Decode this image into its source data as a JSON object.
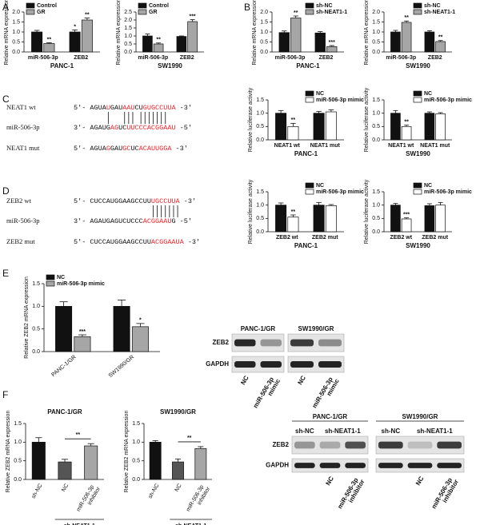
{
  "panels": [
    "A",
    "B",
    "C",
    "D",
    "E",
    "F"
  ],
  "highlight_color": "#e3262b",
  "chart_data": [
    {
      "type": "bar",
      "title": "PANC-1",
      "ylabel": "Relative mRNA expression",
      "categories": [
        "miR-506-3p",
        "ZEB2"
      ],
      "legend": "upper left",
      "ylim": [
        0,
        2
      ],
      "yticks": [
        {
          "value": 0,
          "label": "0.0"
        },
        0.5,
        {
          "value": 1,
          "label": "1.0"
        },
        1.5,
        {
          "value": 2,
          "label": "2.0"
        }
      ],
      "series": [
        {
          "name": "Control",
          "color": "#111111",
          "values": [
            1.0,
            1.0
          ],
          "errors": [
            0.08,
            0.1
          ],
          "significance": [
            null,
            "*"
          ]
        },
        {
          "name": "GR",
          "color": "#a6a6a6",
          "values": [
            0.42,
            1.6
          ],
          "errors": [
            0.04,
            0.1
          ],
          "significance": [
            "**",
            "**"
          ]
        }
      ]
    },
    {
      "type": "bar",
      "title": "SW1990",
      "ylabel": "Relative mRNA expression",
      "categories": [
        "miR-506-3p",
        "ZEB2"
      ],
      "legend": "upper left",
      "ylim": [
        0,
        2.5
      ],
      "yticks": [
        {
          "value": 0,
          "label": "0.0"
        },
        0.5,
        {
          "value": 1,
          "label": "1.0"
        },
        1.5,
        {
          "value": 2,
          "label": "2.0"
        },
        2.5
      ],
      "series": [
        {
          "name": "Control",
          "color": "#111111",
          "values": [
            1.0,
            0.97
          ],
          "errors": [
            0.12,
            0.03
          ],
          "significance": [
            null,
            null
          ]
        },
        {
          "name": "GR",
          "color": "#a6a6a6",
          "values": [
            0.5,
            1.9
          ],
          "errors": [
            0.06,
            0.12
          ],
          "significance": [
            "**",
            "***"
          ]
        }
      ]
    },
    {
      "type": "bar",
      "title": "PANC-1",
      "ylabel": "Relative mRNA expression",
      "categories": [
        "miR-506-3p",
        "ZEB2"
      ],
      "legend": "upper right",
      "ylim": [
        0,
        2
      ],
      "yticks": [
        {
          "value": 0,
          "label": "0.0"
        },
        0.5,
        {
          "value": 1,
          "label": "1.0"
        },
        1.5,
        {
          "value": 2,
          "label": "2.0"
        }
      ],
      "series": [
        {
          "name": "sh-NC",
          "color": "#111111",
          "values": [
            0.97,
            0.95
          ],
          "errors": [
            0.08,
            0.07
          ],
          "significance": [
            null,
            null
          ]
        },
        {
          "name": "sh-NEAT1-1",
          "color": "#a6a6a6",
          "values": [
            1.7,
            0.27
          ],
          "errors": [
            0.1,
            0.05
          ],
          "significance": [
            "**",
            "***"
          ]
        }
      ]
    },
    {
      "type": "bar",
      "title": "SW1990",
      "ylabel": "Relative mRNA expression",
      "categories": [
        "miR-506-3p",
        "ZEB2"
      ],
      "legend": "upper right",
      "ylim": [
        0,
        2
      ],
      "yticks": [
        {
          "value": 0,
          "label": "0.0"
        },
        0.5,
        {
          "value": 1,
          "label": "1.0"
        },
        1.5,
        {
          "value": 2,
          "label": "2.0"
        }
      ],
      "series": [
        {
          "name": "sh-NC",
          "color": "#111111",
          "values": [
            1.0,
            1.0
          ],
          "errors": [
            0.08,
            0.06
          ],
          "significance": [
            null,
            null
          ]
        },
        {
          "name": "sh-NEAT1-1",
          "color": "#a6a6a6",
          "values": [
            1.48,
            0.52
          ],
          "errors": [
            0.07,
            0.05
          ],
          "significance": [
            "**",
            "**"
          ]
        }
      ]
    },
    {
      "type": "bar",
      "title": "PANC-1",
      "ylabel": "Relative luciferase activity",
      "categories": [
        "NEAT1 wt",
        "NEAT1 mut"
      ],
      "legend": "upper right",
      "ylim": [
        0,
        1.5
      ],
      "yticks": [
        {
          "value": 0,
          "label": "0.0"
        },
        0.5,
        {
          "value": 1,
          "label": "1.0"
        },
        1.5
      ],
      "series": [
        {
          "name": "NC",
          "color": "#111111",
          "values": [
            1.0,
            1.0
          ],
          "errors": [
            0.1,
            0.07
          ],
          "significance": [
            null,
            null
          ]
        },
        {
          "name": "miR-506-3p mimic",
          "color": "#ffffff",
          "values": [
            0.5,
            1.05
          ],
          "errors": [
            0.12,
            0.08
          ],
          "significance": [
            "**",
            null
          ]
        }
      ]
    },
    {
      "type": "bar",
      "title": "SW1990",
      "ylabel": "Relative luciferase activity",
      "categories": [
        "NEAT1 wt",
        "NEAT1 mut"
      ],
      "legend": "upper right",
      "ylim": [
        0,
        1.5
      ],
      "yticks": [
        {
          "value": 0,
          "label": "0.0"
        },
        0.5,
        {
          "value": 1,
          "label": "1.0"
        },
        1.5
      ],
      "series": [
        {
          "name": "NC",
          "color": "#111111",
          "values": [
            1.0,
            1.0
          ],
          "errors": [
            0.1,
            0.05
          ],
          "significance": [
            null,
            null
          ]
        },
        {
          "name": "miR-506-3p mimic",
          "color": "#ffffff",
          "values": [
            0.5,
            0.98
          ],
          "errors": [
            0.05,
            0.04
          ],
          "significance": [
            "**",
            null
          ]
        }
      ]
    },
    {
      "type": "bar",
      "title": "PANC-1",
      "ylabel": "Relative luciferase activity",
      "categories": [
        "ZEB2 wt",
        "ZEB2 mut"
      ],
      "legend": "upper right",
      "ylim": [
        0,
        1.5
      ],
      "yticks": [
        {
          "value": 0,
          "label": "0.0"
        },
        0.5,
        {
          "value": 1,
          "label": "1.0"
        },
        1.5
      ],
      "series": [
        {
          "name": "NC",
          "color": "#111111",
          "values": [
            1.0,
            1.0
          ],
          "errors": [
            0.08,
            0.1
          ],
          "significance": [
            null,
            null
          ]
        },
        {
          "name": "miR-506-3p mimic",
          "color": "#ffffff",
          "values": [
            0.55,
            0.98
          ],
          "errors": [
            0.08,
            0.04
          ],
          "significance": [
            "**",
            null
          ]
        }
      ]
    },
    {
      "type": "bar",
      "title": "SW1990",
      "ylabel": "Relative luciferase activity",
      "categories": [
        "ZEB2 wt",
        "ZEB2 mut"
      ],
      "legend": "upper right",
      "ylim": [
        0,
        1.5
      ],
      "yticks": [
        {
          "value": 0,
          "label": "0.0"
        },
        0.5,
        {
          "value": 1,
          "label": "1.0"
        },
        1.5
      ],
      "series": [
        {
          "name": "NC",
          "color": "#111111",
          "values": [
            1.0,
            0.98
          ],
          "errors": [
            0.06,
            0.07
          ],
          "significance": [
            null,
            null
          ]
        },
        {
          "name": "miR-506-3p mimic",
          "color": "#ffffff",
          "values": [
            0.48,
            1.0
          ],
          "errors": [
            0.04,
            0.1
          ],
          "significance": [
            "***",
            null
          ]
        }
      ]
    },
    {
      "type": "bar",
      "ylabel": "Relative ZEB2 mRNA expression",
      "categories": [
        "PANC-1/GR",
        "SW1990/GR"
      ],
      "legend": "upper left",
      "ylim": [
        0,
        1.5
      ],
      "yticks": [
        {
          "value": 0,
          "label": "0.0"
        },
        0.5,
        {
          "value": 1,
          "label": "1.0"
        },
        1.5
      ],
      "series": [
        {
          "name": "NC",
          "color": "#111111",
          "values": [
            1.0,
            1.0
          ],
          "errors": [
            0.1,
            0.14
          ],
          "significance": [
            null,
            null
          ]
        },
        {
          "name": "miR-506-3p mimic",
          "color": "#a6a6a6",
          "values": [
            0.33,
            0.55
          ],
          "errors": [
            0.04,
            0.07
          ],
          "significance": [
            "***",
            "*"
          ]
        }
      ]
    },
    {
      "type": "bar",
      "title": "PANC-1/GR",
      "ylabel": "Relative ZEB2 mRNA expression",
      "categories": [
        "sh-NC",
        "NC",
        "miR-506-3p inhibitor"
      ],
      "ylim": [
        0,
        1.5
      ],
      "yticks": [
        {
          "value": 0,
          "label": "0.0"
        },
        0.5,
        {
          "value": 1,
          "label": "1.0"
        },
        1.5
      ],
      "series": [
        {
          "colors": [
            "#111111",
            "#555555",
            "#a6a6a6"
          ],
          "values": [
            1.0,
            0.47,
            0.9
          ],
          "errors": [
            0.12,
            0.07,
            0.06
          ]
        }
      ],
      "bracket": {
        "from": 1,
        "to": 2,
        "text": "**"
      },
      "group_label": {
        "from": 1,
        "to": 2,
        "text": "sh-NEAT1-1"
      }
    },
    {
      "type": "bar",
      "title": "SW1990/GR",
      "ylabel": "Relative ZEB2 mRNA expression",
      "categories": [
        "sh-NC",
        "NC",
        "miR-506-3p inhibitor"
      ],
      "ylim": [
        0,
        1.5
      ],
      "yticks": [
        {
          "value": 0,
          "label": "0.0"
        },
        0.5,
        {
          "value": 1,
          "label": "1.0"
        },
        1.5
      ],
      "series": [
        {
          "colors": [
            "#111111",
            "#555555",
            "#a6a6a6"
          ],
          "values": [
            1.0,
            0.47,
            0.83
          ],
          "errors": [
            0.04,
            0.08,
            0.05
          ]
        }
      ],
      "bracket": {
        "from": 1,
        "to": 2,
        "text": "**"
      },
      "group_label": {
        "from": 1,
        "to": 2,
        "text": "sh-NEAT1-1"
      }
    }
  ],
  "sequences": [
    {
      "rows": [
        {
          "label": "NEAT1 wt",
          "parts": [
            {
              "text": "5'- AGUA"
            },
            {
              "text": "U",
              "highlight": true
            },
            {
              "text": "GAU"
            },
            {
              "text": "AAU",
              "highlight": true
            },
            {
              "text": "CU"
            },
            {
              "text": "GUGCCUUA",
              "highlight": true
            },
            {
              "text": " -3'"
            }
          ]
        },
        {
          "label": "miR-506-3p",
          "parts": [
            {
              "text": "3'- AGAUG"
            },
            {
              "text": "AG",
              "highlight": true
            },
            {
              "text": "UC"
            },
            {
              "text": "UUCC",
              "highlight": true
            },
            {
              "text": "CACGGAAU",
              "highlight": true
            },
            {
              "text": " -5'"
            }
          ]
        },
        {
          "label": "NEAT1 mut",
          "parts": [
            {
              "text": "5'- AGUA"
            },
            {
              "text": "G",
              "highlight": true
            },
            {
              "text": "GAU"
            },
            {
              "text": "GC",
              "highlight": true
            },
            {
              "text": "UC"
            },
            {
              "text": "ACAUUGGA",
              "highlight": true
            },
            {
              "text": " -3'"
            }
          ]
        }
      ]
    },
    {
      "rows": [
        {
          "label": "ZEB2 wt",
          "parts": [
            {
              "text": "5'- CUCCAUGGAAGCCUU"
            },
            {
              "text": "UGCCUUA",
              "highlight": true
            },
            {
              "text": " -3'"
            }
          ]
        },
        {
          "label": "miR-506-3p",
          "parts": [
            {
              "text": "3'- AGAUGAGUCUCCC"
            },
            {
              "text": "ACGGAAU",
              "highlight": true
            },
            {
              "text": "G -5'"
            }
          ]
        },
        {
          "label": "ZEB2 mut",
          "parts": [
            {
              "text": "5'- CUCCAUGGAAGCCUU"
            },
            {
              "text": "ACGGAAUA",
              "highlight": true
            },
            {
              "text": " -3'"
            }
          ]
        }
      ]
    }
  ],
  "blots": [
    {
      "rows": [
        "ZEB2",
        "GAPDH"
      ],
      "gels": [
        {
          "title": "PANC-1/GR",
          "lanes": [
            "NC",
            "miR-506-3p mimic"
          ]
        },
        {
          "title": "SW1990/GR",
          "lanes": [
            "NC",
            "miR-506-3p mimic"
          ]
        }
      ]
    },
    {
      "rows": [
        "ZEB2",
        "GAPDH"
      ],
      "gels": [
        {
          "title": "PANC-1/GR",
          "top": [
            "sh-NC",
            "sh-NEAT1-1"
          ],
          "lanes": [
            "NC",
            "miR-506-3p inhibitor"
          ]
        },
        {
          "title": "SW1990/GR",
          "top": [
            "sh-NC",
            "sh-NEAT1-1"
          ],
          "lanes": [
            "NC",
            "miR-506-3p inhibitor"
          ]
        }
      ]
    }
  ]
}
